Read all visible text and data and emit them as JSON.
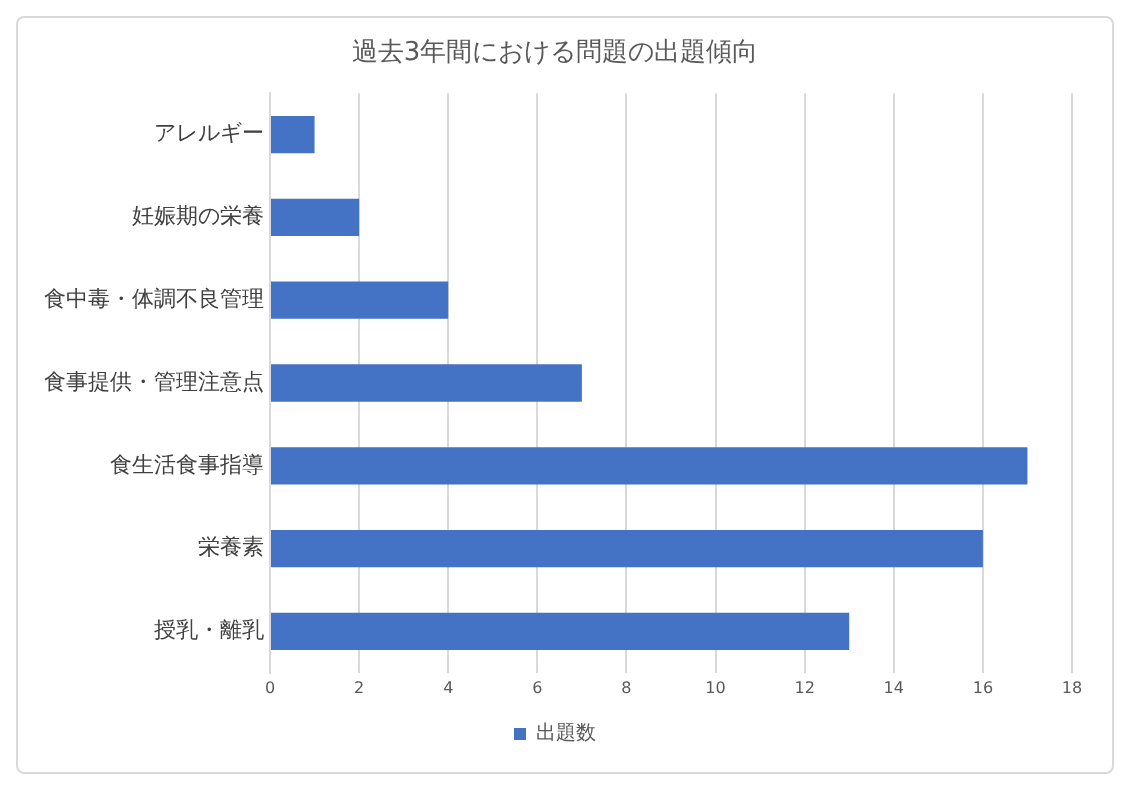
{
  "chart_data": {
    "type": "bar",
    "orientation": "horizontal",
    "title": "過去3年間における問題の出題傾向",
    "categories": [
      "アレルギー",
      "妊娠期の栄養",
      "食中毒・体調不良管理",
      "食事提供・管理注意点",
      "食生活食事指導",
      "栄養素",
      "授乳・離乳"
    ],
    "series": [
      {
        "name": "出題数",
        "color": "#4472c4",
        "values": [
          1,
          2,
          4,
          7,
          17,
          16,
          13
        ]
      }
    ],
    "xlim": [
      0,
      18
    ],
    "xticks": [
      0,
      2,
      4,
      6,
      8,
      10,
      12,
      14,
      16,
      18
    ],
    "grid": "x",
    "legend": "bottom"
  }
}
